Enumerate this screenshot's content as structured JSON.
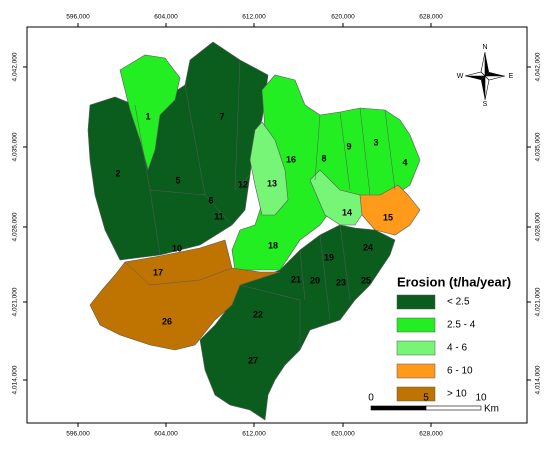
{
  "map": {
    "x_ticks": [
      "596,000",
      "604,000",
      "612,000",
      "620,000",
      "628,000"
    ],
    "y_ticks": [
      "4,042,000",
      "4,035,000",
      "4,028,000",
      "4,021,000",
      "4,014,000"
    ],
    "subbasins": [
      {
        "label": "1",
        "class": 1
      },
      {
        "label": "2",
        "class": 0
      },
      {
        "label": "3",
        "class": 1
      },
      {
        "label": "4",
        "class": 1
      },
      {
        "label": "5",
        "class": 0
      },
      {
        "label": "6",
        "class": 0
      },
      {
        "label": "7",
        "class": 0
      },
      {
        "label": "8",
        "class": 1
      },
      {
        "label": "9",
        "class": 1
      },
      {
        "label": "10",
        "class": 0
      },
      {
        "label": "11",
        "class": 0
      },
      {
        "label": "12",
        "class": 0
      },
      {
        "label": "13",
        "class": 2
      },
      {
        "label": "14",
        "class": 2
      },
      {
        "label": "15",
        "class": 3
      },
      {
        "label": "16",
        "class": 1
      },
      {
        "label": "17",
        "class": 4
      },
      {
        "label": "18",
        "class": 1
      },
      {
        "label": "19",
        "class": 0
      },
      {
        "label": "20",
        "class": 0
      },
      {
        "label": "21",
        "class": 0
      },
      {
        "label": "22",
        "class": 0
      },
      {
        "label": "23",
        "class": 0
      },
      {
        "label": "24",
        "class": 0
      },
      {
        "label": "25",
        "class": 0
      },
      {
        "label": "26",
        "class": 4
      },
      {
        "label": "27",
        "class": 0
      }
    ],
    "legend": {
      "title": "Erosion (t/ha/year)",
      "classes": [
        {
          "label": "< 2.5",
          "color": "#0b5d1e"
        },
        {
          "label": "2.5 - 4",
          "color": "#22ee22"
        },
        {
          "label": "4 - 6",
          "color": "#77f577"
        },
        {
          "label": "6 - 10",
          "color": "#ff9a1a"
        },
        {
          "label": "> 10",
          "color": "#bf7300"
        }
      ]
    },
    "scale_bar": {
      "labels": [
        "0",
        "5",
        "10"
      ],
      "unit": "Km"
    },
    "north_arrow": {
      "n": "N",
      "s": "S",
      "e": "E",
      "w": "W"
    }
  }
}
